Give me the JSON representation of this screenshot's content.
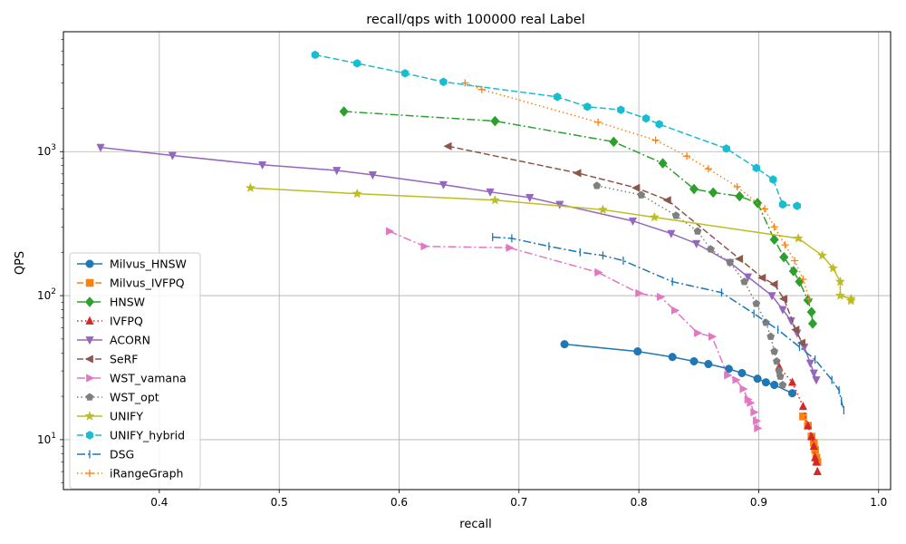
{
  "chart_data": {
    "type": "line",
    "title": "recall/qps with 100000 real Label",
    "xlabel": "recall",
    "ylabel": "QPS",
    "xlim": [
      0.32,
      1.01
    ],
    "ylim": [
      4.5,
      6800
    ],
    "yscale": "log",
    "grid": true,
    "legend_position": "lower-left",
    "x_ticks": [
      "0.4",
      "0.5",
      "0.6",
      "0.7",
      "0.8",
      "0.9",
      "1.0"
    ],
    "y_ticks": [
      "10^1",
      "10^2",
      "10^3"
    ],
    "series": [
      {
        "name": "Milvus_HNSW",
        "color": "#1f77b4",
        "dash": "",
        "marker": "circle",
        "x": [
          0.738,
          0.799,
          0.828,
          0.846,
          0.858,
          0.875,
          0.886,
          0.899,
          0.906,
          0.913,
          0.928
        ],
        "y": [
          46,
          41,
          37.5,
          35,
          33.5,
          31,
          29,
          26.5,
          25,
          24,
          21
        ]
      },
      {
        "name": "Milvus_IVFPQ",
        "color": "#ff7f0e",
        "dash": "7,3",
        "marker": "square",
        "x": [
          0.937,
          0.941,
          0.944,
          0.946,
          0.947,
          0.948,
          0.949
        ],
        "y": [
          14.5,
          12.5,
          10.5,
          9.5,
          8.5,
          7.5,
          7
        ]
      },
      {
        "name": "HNSW",
        "color": "#2ca02c",
        "dash": "9,3,2,3",
        "marker": "diamond",
        "x": [
          0.554,
          0.68,
          0.779,
          0.82,
          0.846,
          0.862,
          0.884,
          0.899,
          0.913,
          0.921,
          0.929,
          0.934,
          0.941,
          0.944,
          0.945
        ],
        "y": [
          1900,
          1630,
          1170,
          830,
          550,
          520,
          490,
          440,
          245,
          185,
          148,
          125,
          93,
          77,
          64
        ]
      },
      {
        "name": "IVFPQ",
        "color": "#d62728",
        "dash": "1.5,3",
        "marker": "triangle-up",
        "x": [
          0.917,
          0.928,
          0.937,
          0.941,
          0.944,
          0.946,
          0.947,
          0.948,
          0.949
        ],
        "y": [
          32,
          25,
          17,
          12.5,
          10.5,
          9,
          7.5,
          7,
          6
        ]
      },
      {
        "name": "ACORN",
        "color": "#9467bd",
        "dash": "",
        "marker": "triangle-down",
        "x": [
          0.351,
          0.411,
          0.486,
          0.548,
          0.578,
          0.637,
          0.676,
          0.709,
          0.734,
          0.795,
          0.827,
          0.848,
          0.876,
          0.891,
          0.911,
          0.92,
          0.927,
          0.932,
          0.938,
          0.943,
          0.946,
          0.948
        ],
        "y": [
          1070,
          940,
          810,
          740,
          690,
          590,
          525,
          480,
          430,
          330,
          270,
          230,
          170,
          135,
          100,
          80,
          67,
          55,
          44,
          34,
          29,
          26
        ]
      },
      {
        "name": "SeRF",
        "color": "#8c564b",
        "dash": "7,3",
        "marker": "triangle-left",
        "x": [
          0.641,
          0.749,
          0.798,
          0.824,
          0.884,
          0.903,
          0.913,
          0.921,
          0.931,
          0.936
        ],
        "y": [
          1090,
          710,
          560,
          460,
          180,
          133,
          120,
          95,
          58,
          47
        ]
      },
      {
        "name": "WST_vamana",
        "color": "#e377c2",
        "dash": "9,3,2,3",
        "marker": "triangle-right",
        "x": [
          0.592,
          0.621,
          0.692,
          0.766,
          0.8,
          0.818,
          0.83,
          0.849,
          0.861,
          0.874,
          0.881,
          0.887,
          0.891,
          0.893,
          0.896,
          0.898,
          0.899
        ],
        "y": [
          280,
          220,
          215,
          145,
          104,
          98,
          79,
          55,
          52,
          28,
          26,
          22.5,
          19,
          18,
          15.5,
          13.5,
          12
        ]
      },
      {
        "name": "WST_opt",
        "color": "#7f7f7f",
        "dash": "1.5,3",
        "marker": "pentagon",
        "x": [
          0.765,
          0.802,
          0.831,
          0.849,
          0.86,
          0.876,
          0.888,
          0.898,
          0.906,
          0.91,
          0.913,
          0.915,
          0.917,
          0.918,
          0.92
        ],
        "y": [
          580,
          500,
          360,
          280,
          210,
          170,
          125,
          88,
          65,
          52,
          41,
          35,
          30,
          27.5,
          24
        ]
      },
      {
        "name": "UNIFY",
        "color": "#bcbd22",
        "dash": "",
        "marker": "star",
        "x": [
          0.476,
          0.565,
          0.68,
          0.77,
          0.813,
          0.933,
          0.953,
          0.962,
          0.968,
          0.968,
          0.977,
          0.977
        ],
        "y": [
          560,
          510,
          460,
          395,
          350,
          250,
          190,
          155,
          125,
          100,
          95,
          92
        ]
      },
      {
        "name": "UNIFY_hybrid",
        "color": "#17becf",
        "dash": "7,3",
        "marker": "hexagon",
        "x": [
          0.53,
          0.565,
          0.605,
          0.637,
          0.732,
          0.757,
          0.785,
          0.806,
          0.817,
          0.873,
          0.898,
          0.912,
          0.92,
          0.932
        ],
        "y": [
          4700,
          4100,
          3500,
          3050,
          2400,
          2050,
          1950,
          1700,
          1550,
          1050,
          770,
          640,
          430,
          420
        ]
      },
      {
        "name": "DSG",
        "color": "#1f77b4",
        "dash": "9,3,2,3",
        "marker": "vline",
        "x": [
          0.678,
          0.694,
          0.725,
          0.751,
          0.77,
          0.787,
          0.828,
          0.869,
          0.896,
          0.916,
          0.934,
          0.947,
          0.961,
          0.967,
          0.969,
          0.971
        ],
        "y": [
          255,
          250,
          220,
          200,
          190,
          175,
          125,
          105,
          75,
          58,
          44,
          36,
          26,
          22,
          18.5,
          16
        ]
      },
      {
        "name": "iRangeGraph",
        "color": "#ff7f0e",
        "dash": "1.5,3",
        "marker": "plus",
        "x": [
          0.655,
          0.669,
          0.766,
          0.814,
          0.84,
          0.858,
          0.882,
          0.905,
          0.913,
          0.922,
          0.93,
          0.937,
          0.942
        ],
        "y": [
          3000,
          2700,
          1600,
          1200,
          930,
          760,
          570,
          400,
          300,
          225,
          175,
          130,
          95
        ]
      }
    ]
  }
}
